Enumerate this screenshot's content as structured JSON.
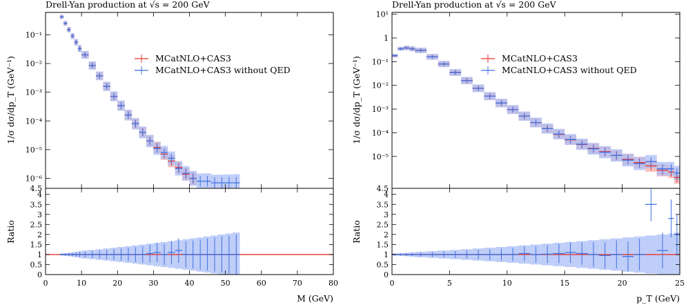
{
  "chart_data": [
    {
      "type": "line",
      "title": "Drell-Yan production at √s = 200 GeV",
      "ylabel": "1/σ dσ/dp_T (GeV⁻¹)",
      "xlabel": "M (GeV)",
      "ratio_ylabel": "Ratio",
      "log_y": true,
      "xlim": [
        0,
        80
      ],
      "ylim": [
        4.5e-07,
        0.6
      ],
      "ratio_ylim": [
        0,
        4.3
      ],
      "yticks": [
        "10⁻¹",
        "10⁻²",
        "10⁻³",
        "10⁻⁴",
        "10⁻⁵",
        "10⁻⁶",
        "4.5"
      ],
      "xticks": [
        "0",
        "10",
        "20",
        "30",
        "40",
        "50",
        "60",
        "70",
        "80"
      ],
      "ratio_yticks": [
        "4",
        "3.5",
        "3",
        "2.5",
        "2",
        "1.5",
        "1",
        "0.5",
        "0"
      ],
      "legend_position": "top-right",
      "series": [
        {
          "name": "MCatNLO+CAS3",
          "color": "#e8322b",
          "x": [
            4,
            5,
            6,
            7,
            8,
            9,
            10,
            12,
            14,
            16,
            18,
            20,
            22,
            24,
            26,
            28,
            30,
            32,
            34,
            36,
            38,
            40,
            42,
            44,
            46,
            48,
            50,
            52
          ],
          "y": [
            0.42,
            0.25,
            0.15,
            0.09,
            0.055,
            0.033,
            0.02,
            0.0085,
            0.0037,
            0.0016,
            0.00072,
            0.00034,
            0.00016,
            8e-05,
            4e-05,
            2e-05,
            1.2e-05,
            7e-06,
            4e-06,
            2.4e-06,
            1.4e-06,
            1e-06,
            0,
            0,
            0,
            0,
            0,
            0
          ]
        },
        {
          "name": "MCatNLO+CAS3 without QED",
          "color": "#3f6fe0",
          "x": [
            4,
            5,
            6,
            7,
            8,
            9,
            10,
            12,
            14,
            16,
            18,
            20,
            22,
            24,
            26,
            28,
            30,
            32,
            34,
            36,
            38,
            40,
            42,
            44,
            46,
            48,
            50,
            52
          ],
          "y": [
            0.42,
            0.25,
            0.15,
            0.09,
            0.055,
            0.033,
            0.02,
            0.0085,
            0.0037,
            0.0016,
            0.00072,
            0.00034,
            0.00016,
            8e-05,
            4e-05,
            2e-05,
            1.1e-05,
            8e-06,
            5e-06,
            2.2e-06,
            1.5e-06,
            1e-06,
            8e-07,
            8e-07,
            7e-07,
            7e-07,
            7e-07,
            7e-07
          ]
        }
      ],
      "ratio": [
        1.0,
        1.0,
        1.0,
        1.0,
        1.0,
        1.0,
        1.0,
        1.0,
        1.0,
        1.0,
        1.0,
        1.0,
        1.0,
        1.0,
        1.0,
        1.05,
        1.1,
        1.0,
        1.1,
        1.2,
        1.0,
        1.0,
        1.0,
        1.0,
        1.0,
        1.0,
        1.0,
        1.0
      ]
    },
    {
      "type": "line",
      "title": "Drell-Yan production at √s = 200 GeV",
      "ylabel": "1/σ dσ/dp_T (GeV⁻¹)",
      "xlabel": "p_T (GeV)",
      "ratio_ylabel": "Ratio",
      "log_y": true,
      "xlim": [
        0,
        25
      ],
      "ylim": [
        4.5e-07,
        12
      ],
      "ratio_ylim": [
        0,
        4.3
      ],
      "yticks": [
        "10¹",
        "1",
        "10⁻¹",
        "10⁻²",
        "10⁻³",
        "10⁻⁴",
        "10⁻⁵",
        "4.5"
      ],
      "xticks": [
        "0",
        "5",
        "10",
        "15",
        "20",
        "25"
      ],
      "ratio_yticks": [
        "4",
        "3.5",
        "3",
        "2.5",
        "2",
        "1.5",
        "1",
        "0.5",
        "0"
      ],
      "legend_position": "top-right",
      "series": [
        {
          "name": "MCatNLO+CAS3",
          "color": "#e8322b",
          "x": [
            0,
            0.5,
            1,
            1.5,
            2,
            3,
            4,
            5,
            6,
            7,
            8,
            9,
            10,
            11,
            12,
            13,
            14,
            15,
            16,
            17,
            18,
            19,
            20,
            21,
            22,
            23,
            24,
            24.5
          ],
          "y": [
            0.18,
            0.35,
            0.38,
            0.35,
            0.3,
            0.16,
            0.08,
            0.035,
            0.016,
            0.0075,
            0.0035,
            0.0018,
            0.00095,
            0.0005,
            0.00027,
            0.00015,
            8.5e-05,
            5e-05,
            3.2e-05,
            2.2e-05,
            1.6e-05,
            1.1e-05,
            7.5e-06,
            5.5e-06,
            4e-06,
            2.6e-06,
            2.2e-06,
            1.3e-06
          ]
        },
        {
          "name": "MCatNLO+CAS3 without QED",
          "color": "#3f6fe0",
          "x": [
            0,
            0.5,
            1,
            1.5,
            2,
            3,
            4,
            5,
            6,
            7,
            8,
            9,
            10,
            11,
            12,
            13,
            14,
            15,
            16,
            17,
            18,
            19,
            20,
            21,
            22,
            23,
            24,
            24.5
          ],
          "y": [
            0.18,
            0.35,
            0.38,
            0.35,
            0.3,
            0.16,
            0.08,
            0.035,
            0.016,
            0.0075,
            0.0035,
            0.0018,
            0.00095,
            0.0005,
            0.00027,
            0.00015,
            8.8e-05,
            5.2e-05,
            3.3e-05,
            2.1e-05,
            1.5e-05,
            1.1e-05,
            7e-06,
            5e-06,
            6e-06,
            3e-06,
            3e-06,
            2e-06
          ]
        }
      ],
      "ratio": [
        1.0,
        1.0,
        1.0,
        1.0,
        1.0,
        1.0,
        1.0,
        1.0,
        1.0,
        1.0,
        1.0,
        1.0,
        1.0,
        1.05,
        1.0,
        1.02,
        1.05,
        1.1,
        1.05,
        1.0,
        0.95,
        1.0,
        0.9,
        1.0,
        3.5,
        1.2,
        2.8,
        2.0
      ]
    }
  ]
}
